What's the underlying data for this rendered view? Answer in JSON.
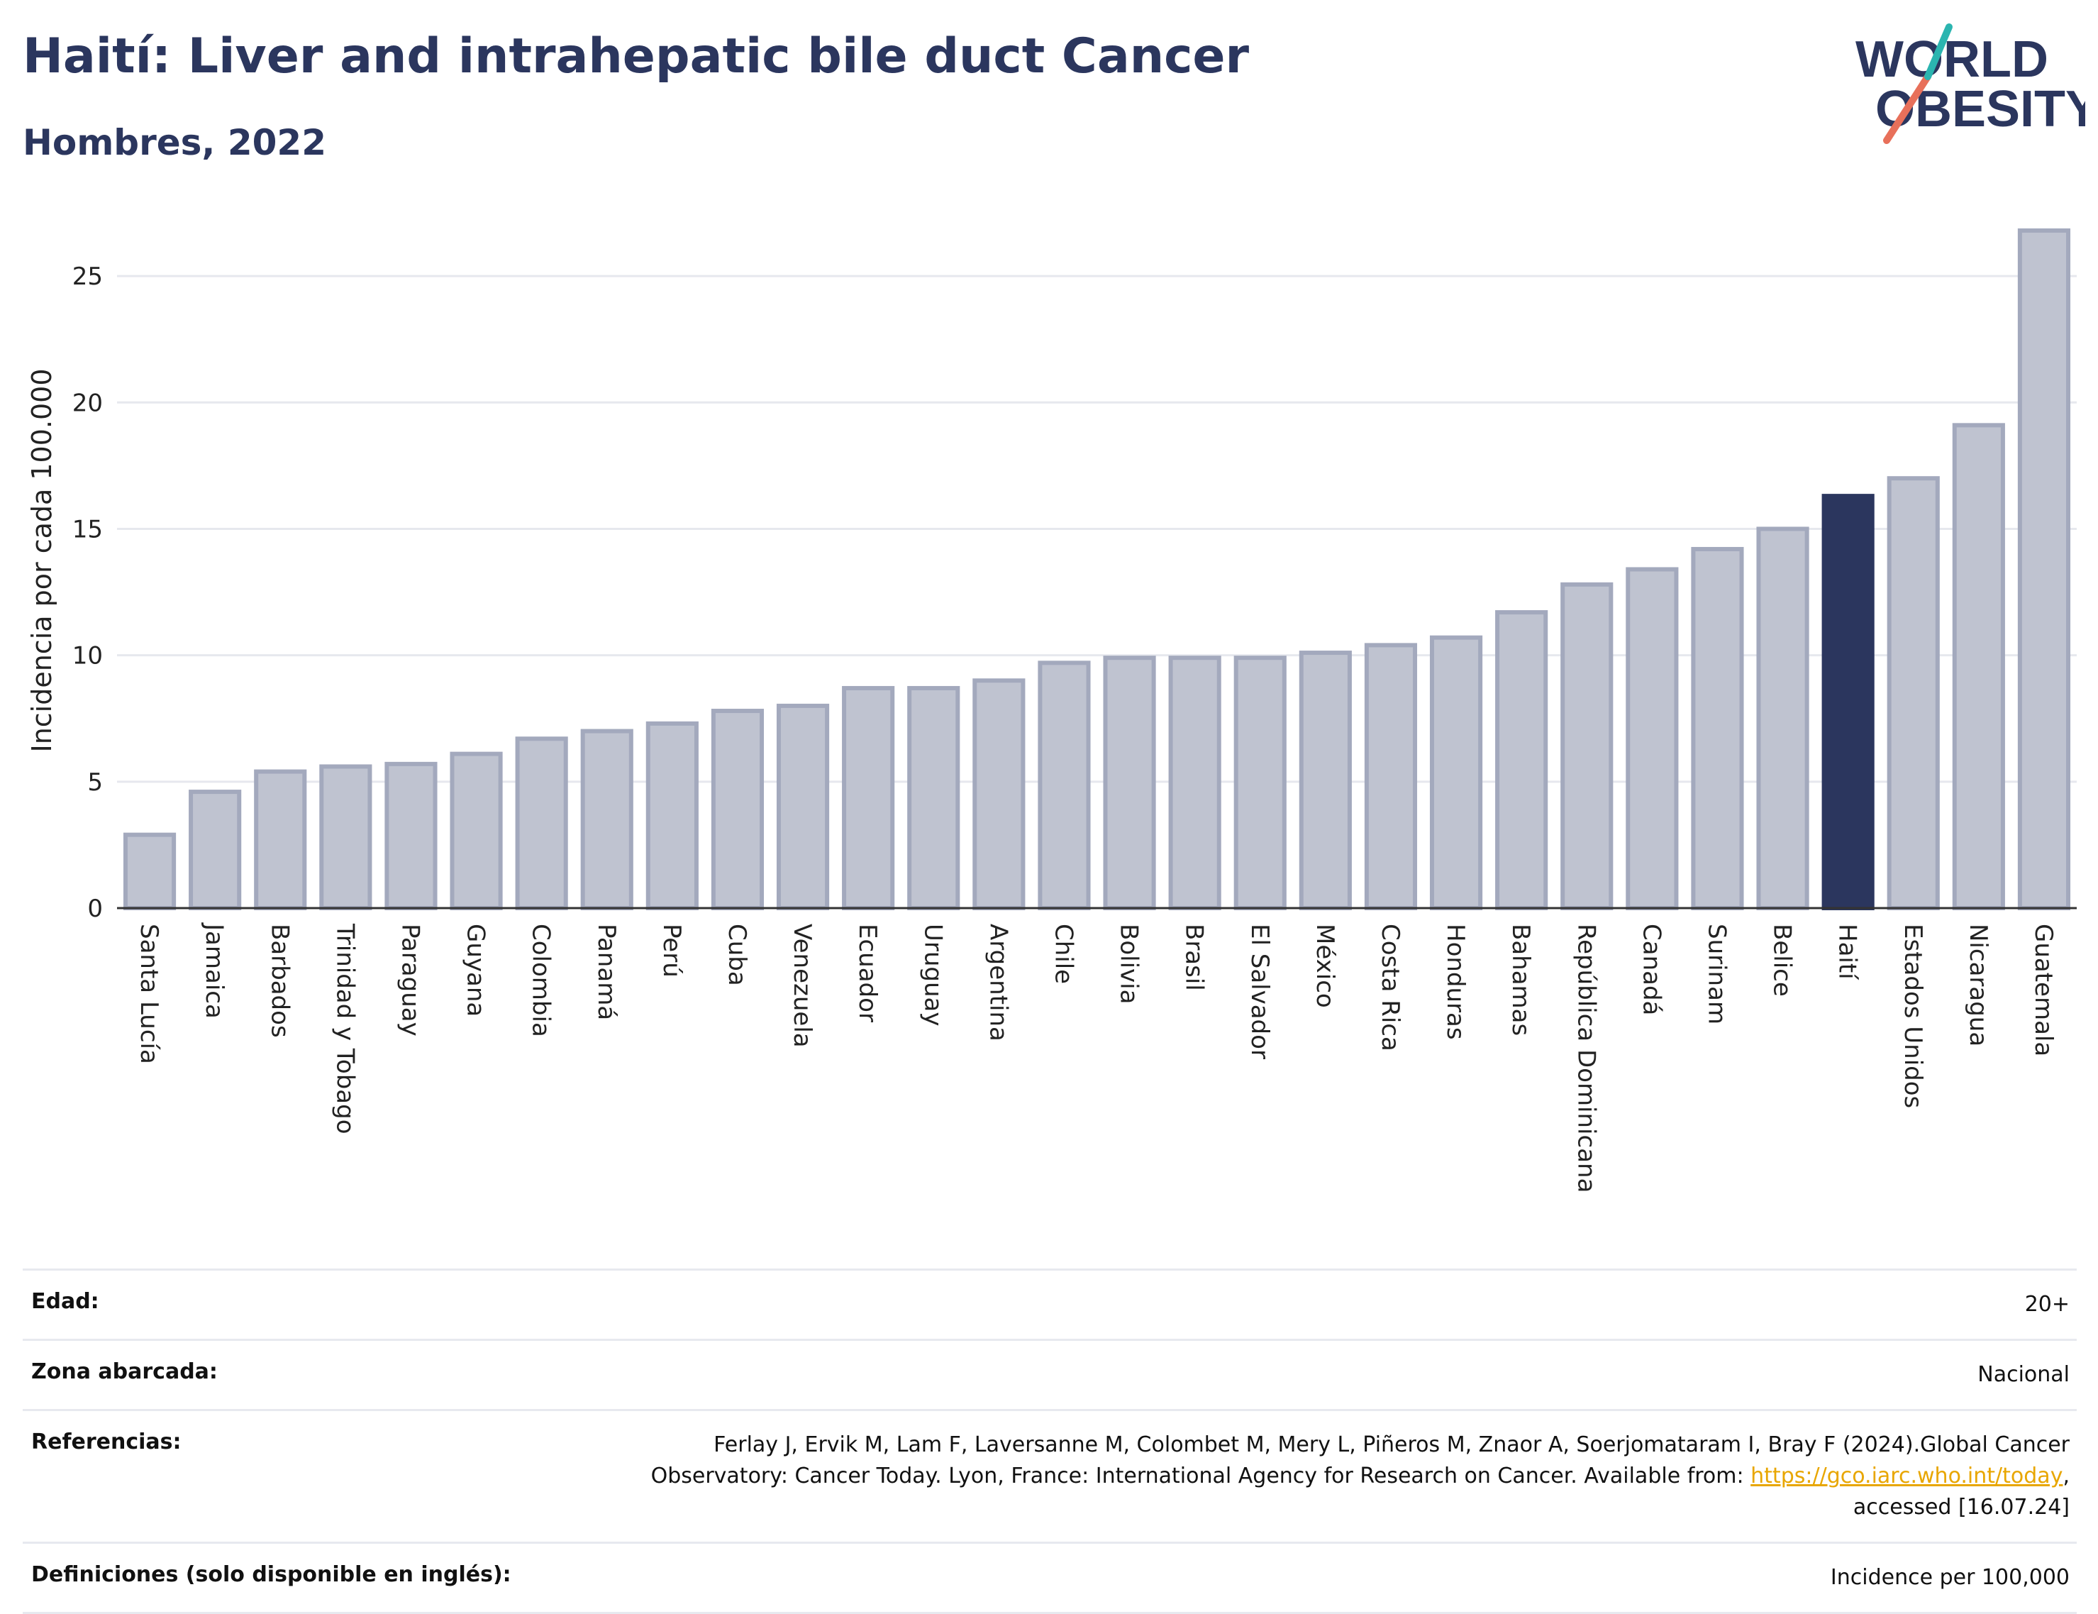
{
  "header": {
    "title": "Haití: Liver and intrahepatic bile duct Cancer",
    "subtitle": "Hombres, 2022"
  },
  "logo": {
    "line1": "WORLD",
    "line2": "OBESITY"
  },
  "colors": {
    "bar": "#bfc3d0",
    "bar_border": "#a3a9bd",
    "highlight": "#2b365e",
    "grid": "#e6e8ee",
    "title": "#2b365e"
  },
  "chart_data": {
    "type": "bar",
    "ylabel": "Incidencia por cada 100.000",
    "ylim": [
      0,
      27.5
    ],
    "yticks": [
      0,
      5,
      10,
      15,
      20,
      25
    ],
    "grid": true,
    "highlight": "Haití",
    "categories": [
      "Santa Lucía",
      "Jamaica",
      "Barbados",
      "Trinidad y Tobago",
      "Paraguay",
      "Guyana",
      "Colombia",
      "Panamá",
      "Perú",
      "Cuba",
      "Venezuela",
      "Ecuador",
      "Uruguay",
      "Argentina",
      "Chile",
      "Bolivia",
      "Brasil",
      "El Salvador",
      "México",
      "Costa Rica",
      "Honduras",
      "Bahamas",
      "República Dominicana",
      "Canadá",
      "Surinam",
      "Belice",
      "Haití",
      "Estados Unidos",
      "Nicaragua",
      "Guatemala"
    ],
    "values": [
      2.9,
      4.6,
      5.4,
      5.6,
      5.7,
      6.1,
      6.7,
      7.0,
      7.3,
      7.8,
      8.0,
      8.7,
      8.7,
      9.0,
      9.7,
      9.9,
      9.9,
      9.9,
      10.1,
      10.4,
      10.7,
      11.7,
      12.8,
      13.4,
      14.2,
      15.0,
      16.3,
      17.0,
      19.1,
      26.8
    ]
  },
  "meta": {
    "age_label": "Edad:",
    "age_value": "20+",
    "zone_label": "Zona abarcada:",
    "zone_value": "Nacional",
    "ref_label": "Referencias:",
    "ref_text_1": "Ferlay J, Ervik M, Lam F, Laversanne M, Colombet M, Mery L, Piñeros M, Znaor A, Soerjomataram I, Bray F (2024).Global Cancer Observatory: Cancer Today. Lyon, France: International Agency for Research on Cancer. Available from: ",
    "ref_link": "https://gco.iarc.who.int/today",
    "ref_text_2": ", accessed [16.07.24]",
    "def_label": "Definiciones (solo disponible en inglés):",
    "def_value": "Incidence per 100,000"
  }
}
